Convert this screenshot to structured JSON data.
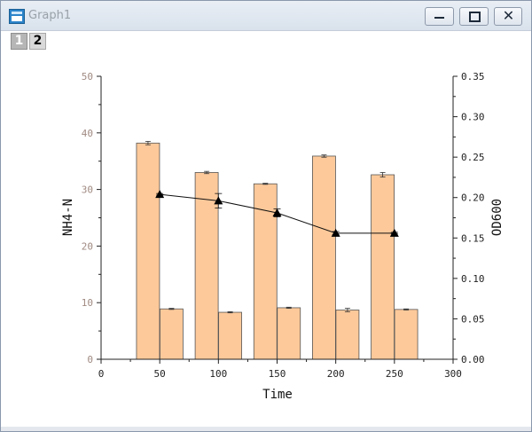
{
  "window": {
    "title": "Graph1",
    "layer_tabs": [
      "1",
      "2"
    ]
  },
  "chart_data": {
    "type": "bar",
    "title": "",
    "xlabel": "Time",
    "ylabel_left": "NH4-N",
    "ylabel_right": "OD600",
    "xlim": [
      0,
      300
    ],
    "ylim_left": [
      0,
      50
    ],
    "ylim_right": [
      0,
      0.35
    ],
    "x_ticks": [
      "0",
      "50",
      "100",
      "150",
      "200",
      "250",
      "300"
    ],
    "y_left_ticks": [
      "0",
      "10",
      "20",
      "30",
      "40",
      "50"
    ],
    "y_right_ticks": [
      "0.00",
      "0.05",
      "0.10",
      "0.15",
      "0.20",
      "0.25",
      "0.30",
      "0.35"
    ],
    "grid": false,
    "colors": {
      "bar_fill": "#fdc99a",
      "bar_edge": "#555555",
      "line": "#111111",
      "left_axis_text": "#a08a82"
    },
    "x": [
      50,
      100,
      150,
      200,
      250
    ],
    "series": [
      {
        "axis": "left",
        "kind": "bar",
        "offset": -10,
        "values": [
          38.2,
          33.0,
          31.0,
          35.9,
          32.6
        ],
        "errors": [
          0.3,
          0.2,
          0.1,
          0.2,
          0.4
        ]
      },
      {
        "axis": "left",
        "kind": "bar",
        "offset": 10,
        "values": [
          8.9,
          8.3,
          9.1,
          8.7,
          8.8
        ],
        "errors": [
          0.1,
          0.1,
          0.1,
          0.3,
          0.1
        ]
      },
      {
        "axis": "right",
        "kind": "line",
        "marker": "triangle",
        "values": [
          0.204,
          0.196,
          0.181,
          0.156,
          0.156
        ],
        "errors": [
          0.001,
          0.009,
          0.005,
          0.002,
          0.001
        ]
      }
    ]
  }
}
